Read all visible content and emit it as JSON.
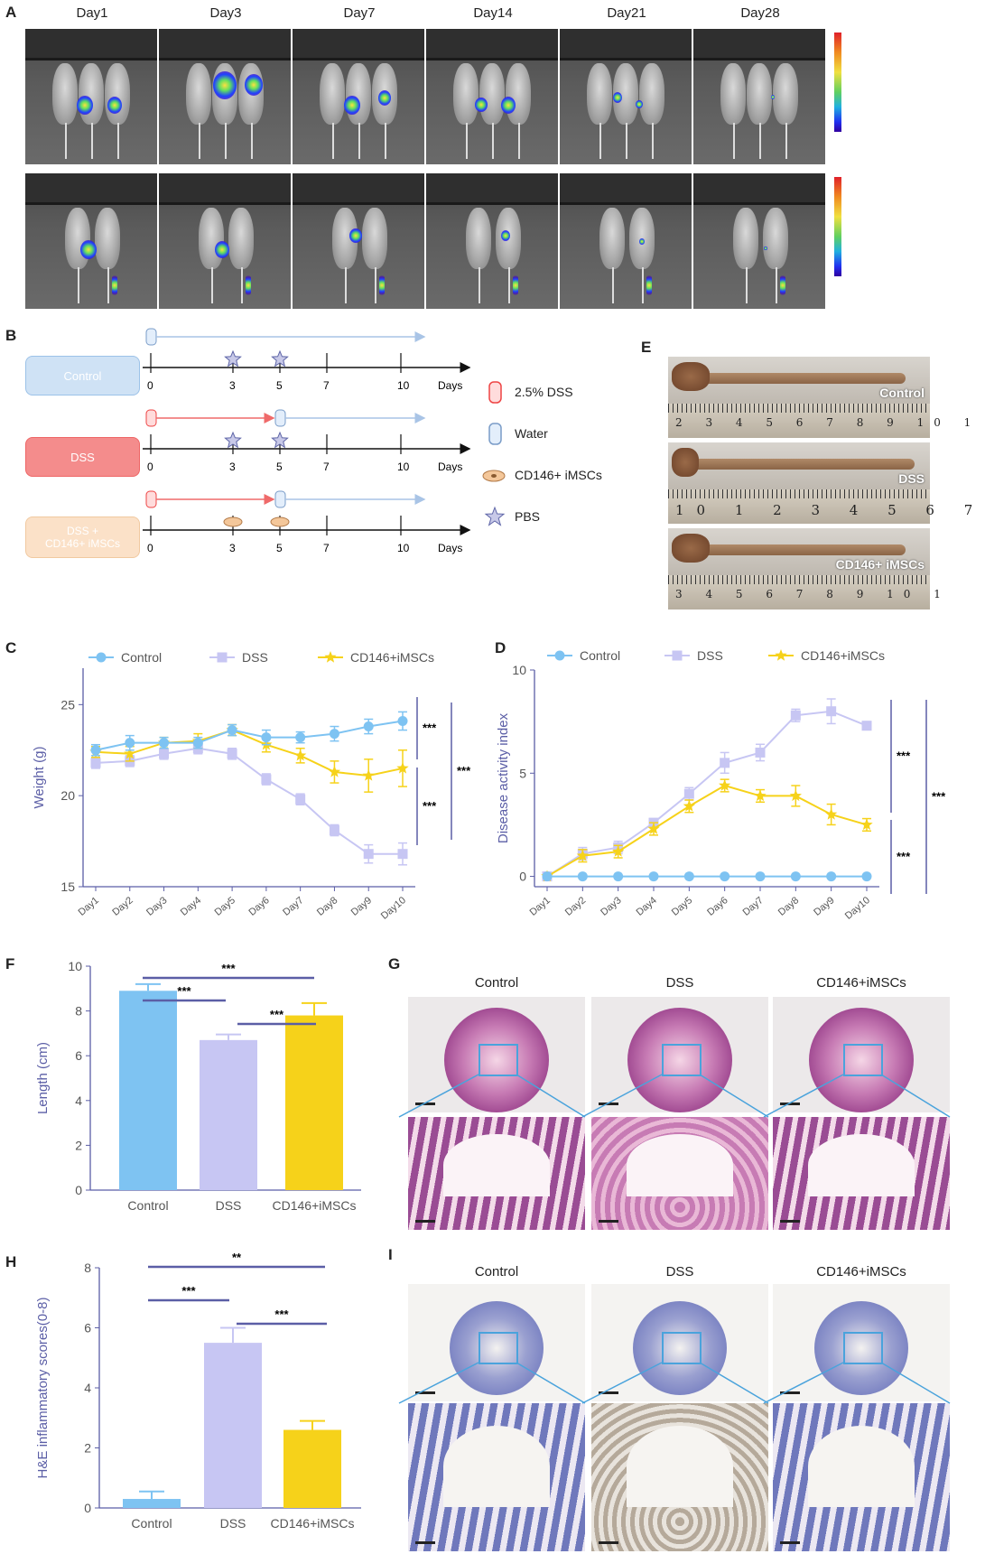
{
  "panels": {
    "A": "A",
    "B": "B",
    "C": "C",
    "D": "D",
    "E": "E",
    "F": "F",
    "G": "G",
    "H": "H",
    "I": "I"
  },
  "panelA": {
    "days": [
      "Day1",
      "Day3",
      "Day7",
      "Day14",
      "Day21",
      "Day28"
    ]
  },
  "panelB": {
    "groups": [
      "Control",
      "DSS",
      "DSS +\nCD146+ iMSCs"
    ],
    "ticks": [
      "0",
      "3",
      "5",
      "7",
      "10"
    ],
    "axis_unit": "Days",
    "legend": [
      "2.5% DSS",
      "Water",
      "CD146+ iMSCs",
      "PBS"
    ]
  },
  "panelE": {
    "labels": [
      "Control",
      "DSS",
      "CD146+ iMSCs"
    ],
    "ruler1": "2 3 4 5 6 7 8 9 10 1",
    "ruler2": "10 1 2 3 4 5 6 7",
    "ruler3": "3 4 5 6 7 8 9 10 1"
  },
  "panelG": {
    "titles": [
      "Control",
      "DSS",
      "CD146+iMSCs"
    ]
  },
  "panelI": {
    "titles": [
      "Control",
      "DSS",
      "CD146+iMSCs"
    ]
  },
  "colors": {
    "control": "#7ec3f2",
    "dss": "#c7c6f3",
    "imsc": "#f6d21a",
    "axis": "#5b5ea6"
  },
  "chart_data": [
    {
      "id": "C",
      "type": "line",
      "x": [
        "Day1",
        "Day2",
        "Day3",
        "Day4",
        "Day5",
        "Day6",
        "Day7",
        "Day8",
        "Day9",
        "Day10"
      ],
      "ylabel": "Weight (g)",
      "ylim": [
        15,
        27
      ],
      "yticks": [
        15,
        20,
        25
      ],
      "series": [
        {
          "name": "Control",
          "values": [
            22.5,
            22.9,
            22.9,
            22.9,
            23.6,
            23.2,
            23.2,
            23.4,
            23.8,
            24.1
          ],
          "err": [
            0.3,
            0.4,
            0.3,
            0.3,
            0.3,
            0.4,
            0.3,
            0.4,
            0.4,
            0.5
          ]
        },
        {
          "name": "DSS",
          "values": [
            21.8,
            21.9,
            22.3,
            22.6,
            22.3,
            20.9,
            19.8,
            18.1,
            16.8,
            16.8
          ],
          "err": [
            0.3,
            0.3,
            0.3,
            0.3,
            0.3,
            0.3,
            0.3,
            0.3,
            0.5,
            0.6
          ]
        },
        {
          "name": "CD146+iMSCs",
          "values": [
            22.4,
            22.3,
            22.9,
            23.0,
            23.6,
            22.8,
            22.2,
            21.3,
            21.1,
            21.5
          ],
          "err": [
            0.3,
            0.4,
            0.3,
            0.4,
            0.3,
            0.4,
            0.4,
            0.6,
            0.9,
            1.0
          ]
        }
      ],
      "sig": [
        "***",
        "***",
        "***"
      ]
    },
    {
      "id": "D",
      "type": "line",
      "x": [
        "Day1",
        "Day2",
        "Day3",
        "Day4",
        "Day5",
        "Day6",
        "Day7",
        "Day8",
        "Day9",
        "Day10"
      ],
      "ylabel": "Disease activity index",
      "ylim": [
        -0.5,
        10
      ],
      "yticks": [
        0,
        5,
        10
      ],
      "series": [
        {
          "name": "Control",
          "values": [
            0,
            0,
            0,
            0,
            0,
            0,
            0,
            0,
            0,
            0
          ],
          "err": [
            0,
            0,
            0,
            0,
            0,
            0,
            0,
            0,
            0,
            0
          ]
        },
        {
          "name": "DSS",
          "values": [
            0,
            1.1,
            1.4,
            2.6,
            4.0,
            5.5,
            6.0,
            7.8,
            8.0,
            7.3
          ],
          "err": [
            0,
            0.3,
            0.3,
            0.2,
            0.3,
            0.5,
            0.4,
            0.3,
            0.6,
            0.2
          ]
        },
        {
          "name": "CD146+iMSCs",
          "values": [
            0,
            1.0,
            1.2,
            2.3,
            3.4,
            4.4,
            3.9,
            3.9,
            3.0,
            2.5
          ],
          "err": [
            0,
            0.3,
            0.3,
            0.3,
            0.3,
            0.3,
            0.3,
            0.5,
            0.5,
            0.3
          ]
        }
      ],
      "sig": [
        "***",
        "***",
        "***"
      ]
    },
    {
      "id": "F",
      "type": "bar",
      "categories": [
        "Control",
        "DSS",
        "CD146+iMSCs"
      ],
      "values": [
        8.9,
        6.7,
        7.8
      ],
      "err": [
        0.3,
        0.25,
        0.55
      ],
      "ylabel": "Length (cm)",
      "ylim": [
        0,
        10
      ],
      "yticks": [
        0,
        2,
        4,
        6,
        8,
        10
      ],
      "sig": [
        "***",
        "***",
        "***"
      ]
    },
    {
      "id": "H",
      "type": "bar",
      "categories": [
        "Control",
        "DSS",
        "CD146+iMSCs"
      ],
      "values": [
        0.3,
        5.5,
        2.6
      ],
      "err": [
        0.25,
        0.5,
        0.3
      ],
      "ylabel": "H&E inflammatory scores(0-8)",
      "ylim": [
        0,
        8
      ],
      "yticks": [
        0,
        2,
        4,
        6,
        8
      ],
      "sig": [
        "**",
        "***",
        "***"
      ]
    }
  ]
}
